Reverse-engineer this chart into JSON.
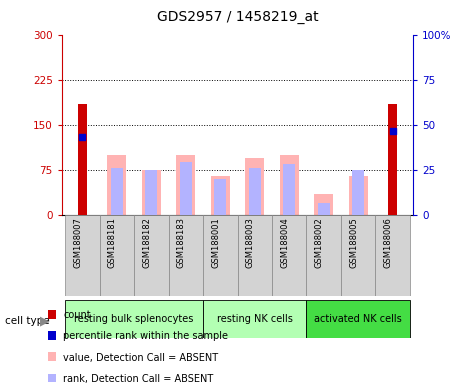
{
  "title": "GDS2957 / 1458219_at",
  "samples": [
    "GSM188007",
    "GSM188181",
    "GSM188182",
    "GSM188183",
    "GSM188001",
    "GSM188003",
    "GSM188004",
    "GSM188002",
    "GSM188005",
    "GSM188006"
  ],
  "groups": [
    {
      "label": "resting bulk splenocytes",
      "color": "#b3ffb3",
      "start": 0,
      "end": 3
    },
    {
      "label": "resting NK cells",
      "color": "#b3ffb3",
      "start": 4,
      "end": 6
    },
    {
      "label": "activated NK cells",
      "color": "#44dd44",
      "start": 7,
      "end": 9
    }
  ],
  "count_values": [
    185,
    0,
    0,
    0,
    0,
    0,
    0,
    0,
    0,
    185
  ],
  "count_present": [
    true,
    false,
    false,
    false,
    false,
    false,
    false,
    false,
    false,
    true
  ],
  "percentile_values": [
    130,
    0,
    0,
    0,
    0,
    0,
    0,
    0,
    0,
    140
  ],
  "percentile_present": [
    true,
    false,
    false,
    false,
    false,
    false,
    false,
    false,
    false,
    true
  ],
  "value_absent": [
    0,
    100,
    75,
    100,
    65,
    95,
    100,
    35,
    65,
    0
  ],
  "rank_absent": [
    0,
    78,
    75,
    88,
    60,
    78,
    85,
    20,
    75,
    0
  ],
  "rank_absent_small": [
    false,
    true,
    true,
    true,
    true,
    true,
    true,
    true,
    true,
    false
  ],
  "left_ylim": [
    0,
    300
  ],
  "left_yticks": [
    0,
    75,
    150,
    225,
    300
  ],
  "right_ylim": [
    0,
    100
  ],
  "right_yticks": [
    0,
    25,
    50,
    75,
    100
  ],
  "right_yticklabels": [
    "0",
    "25",
    "50",
    "75",
    "100%"
  ],
  "count_color": "#cc0000",
  "percentile_color": "#0000cc",
  "value_absent_color": "#ffb3b3",
  "rank_absent_color": "#b3b3ff",
  "left_tick_color": "#cc0000",
  "right_tick_color": "#0000cc",
  "legend_items": [
    {
      "label": "count",
      "color": "#cc0000"
    },
    {
      "label": "percentile rank within the sample",
      "color": "#0000cc"
    },
    {
      "label": "value, Detection Call = ABSENT",
      "color": "#ffb3b3"
    },
    {
      "label": "rank, Detection Call = ABSENT",
      "color": "#b3b3ff"
    }
  ]
}
